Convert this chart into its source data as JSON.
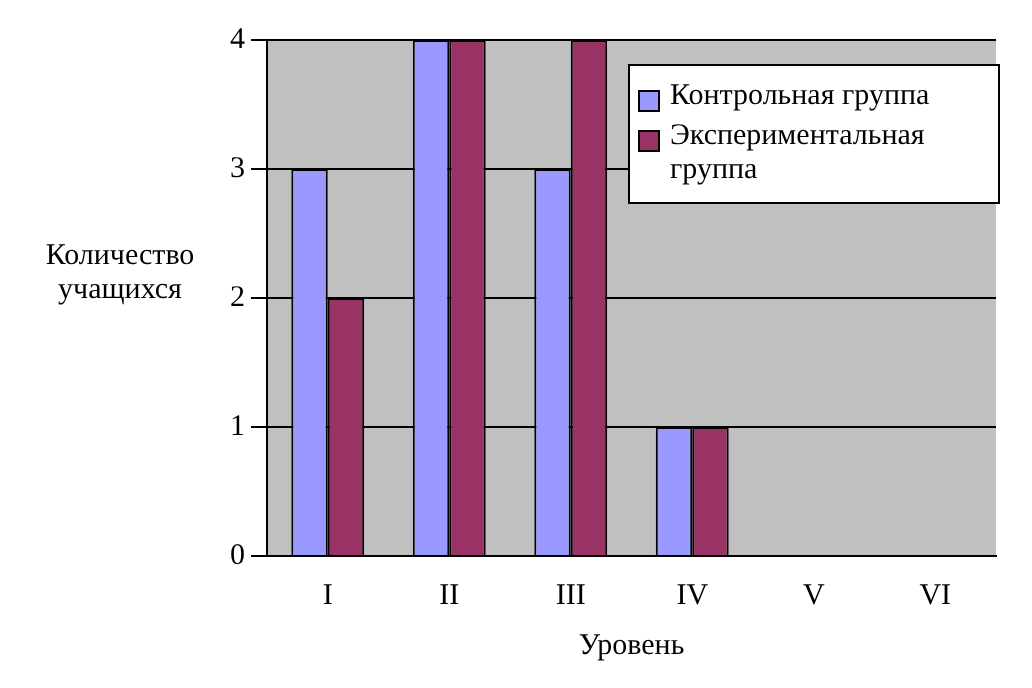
{
  "chart_data": {
    "type": "bar",
    "xlabel": "Уровень",
    "ylabel": "Количество учащихся",
    "categories": [
      "I",
      "II",
      "III",
      "IV",
      "V",
      "VI"
    ],
    "series": [
      {
        "name": "Контрольная группа",
        "color": "#9999ff",
        "values": [
          3,
          4,
          3,
          1,
          0,
          0
        ]
      },
      {
        "name": "Экспериментальная группа",
        "color": "#993366",
        "values": [
          2,
          4,
          4,
          1,
          0,
          0
        ]
      }
    ],
    "ylim": [
      0,
      4
    ],
    "yticks": [
      0,
      1,
      2,
      3,
      4
    ],
    "grid": "y",
    "legend": "top right"
  }
}
